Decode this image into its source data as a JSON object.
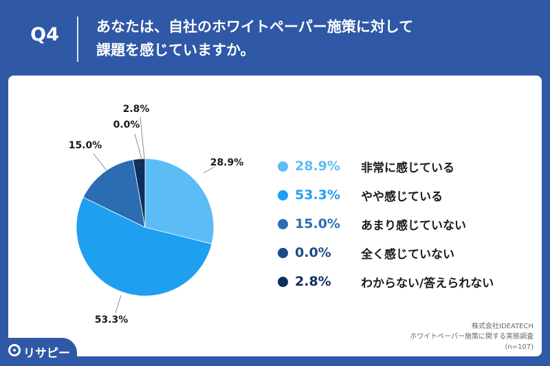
{
  "header": {
    "question_number": "Q4",
    "question_line1": "あなたは、自社のホワイトペーパー施策に対して",
    "question_line2": "課題を感じていますか。"
  },
  "chart_data": {
    "type": "pie",
    "labels": [
      "非常に感じている",
      "やや感じている",
      "あまり感じていない",
      "全く感じていない",
      "わからない/答えられない"
    ],
    "values": [
      28.9,
      53.3,
      15.0,
      0.0,
      2.8
    ],
    "value_labels": [
      "28.9%",
      "53.3%",
      "15.0%",
      "0.0%",
      "2.8%"
    ],
    "colors": [
      "#5cbcf5",
      "#1f9ff0",
      "#2b6cb3",
      "#1b4a8a",
      "#0f2f5c"
    ],
    "start_angle": "12 o'clock, clockwise",
    "legend_position": "right"
  },
  "legend": [
    {
      "value": "28.9%",
      "label": "非常に感じている",
      "color": "#5cbcf5"
    },
    {
      "value": "53.3%",
      "label": "やや感じている",
      "color": "#1f9ff0"
    },
    {
      "value": "15.0%",
      "label": "あまり感じていない",
      "color": "#2b6cb3"
    },
    {
      "value": "0.0%",
      "label": "全く感じていない",
      "color": "#1b4a8a"
    },
    {
      "value": "2.8%",
      "label": "わからない/答えられない",
      "color": "#0f2f5c"
    }
  ],
  "footnote": {
    "line1": "株式会社IDEATECH",
    "line2": "ホワイトペーパー施策に関する実態調査",
    "line3": "(n=107)"
  },
  "logo": {
    "text": "リサピー",
    "icon": "pin-icon"
  }
}
